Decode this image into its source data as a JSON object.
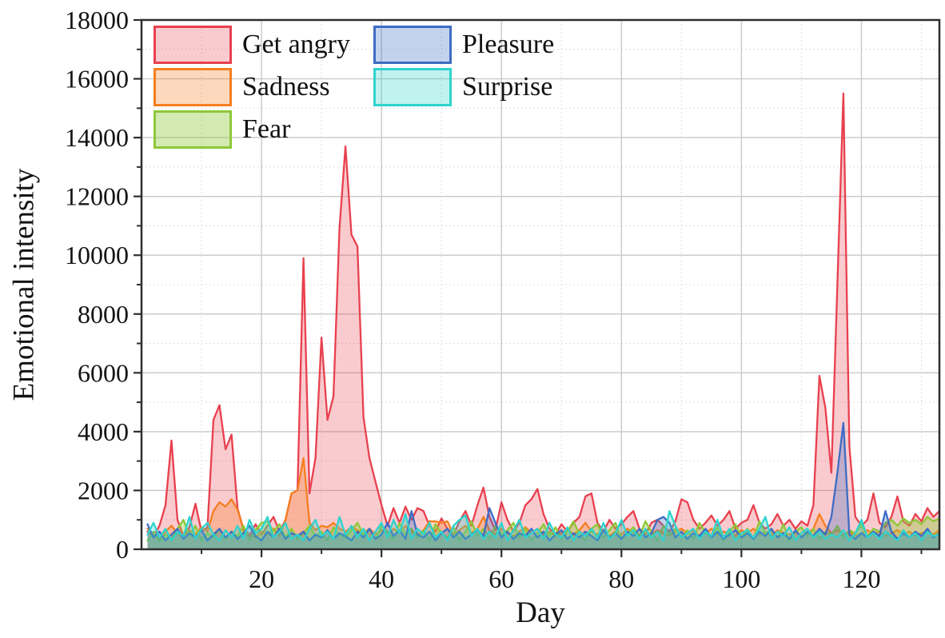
{
  "figure": {
    "xlabel": "Day",
    "ylabel": "Emotional intensity"
  },
  "chart_data": {
    "type": "area",
    "title": "",
    "xlabel": "Day",
    "ylabel": "Emotional intensity",
    "legend_position": "top-left-inside",
    "grid": "major-solid, minor-dotted",
    "frame_color": "#2e2e2e",
    "major_grid_color": "#c8c8c8",
    "minor_grid_color": "#dedede",
    "x_range": [
      0,
      133
    ],
    "y_range": [
      0,
      18000
    ],
    "x_major_ticks": [
      20,
      40,
      60,
      80,
      100,
      120
    ],
    "x_minor_ticks": [
      10,
      30,
      50,
      70,
      90,
      110,
      130
    ],
    "y_major_ticks": [
      0,
      2000,
      4000,
      6000,
      8000,
      10000,
      12000,
      14000,
      16000,
      18000
    ],
    "y_minor_step": 1000,
    "x": [
      1,
      2,
      3,
      4,
      5,
      6,
      7,
      8,
      9,
      10,
      11,
      12,
      13,
      14,
      15,
      16,
      17,
      18,
      19,
      20,
      21,
      22,
      23,
      24,
      25,
      26,
      27,
      28,
      29,
      30,
      31,
      32,
      33,
      34,
      35,
      36,
      37,
      38,
      39,
      40,
      41,
      42,
      43,
      44,
      45,
      46,
      47,
      48,
      49,
      50,
      51,
      52,
      53,
      54,
      55,
      56,
      57,
      58,
      59,
      60,
      61,
      62,
      63,
      64,
      65,
      66,
      67,
      68,
      69,
      70,
      71,
      72,
      73,
      74,
      75,
      76,
      77,
      78,
      79,
      80,
      81,
      82,
      83,
      84,
      85,
      86,
      87,
      88,
      89,
      90,
      91,
      92,
      93,
      94,
      95,
      96,
      97,
      98,
      99,
      100,
      101,
      102,
      103,
      104,
      105,
      106,
      107,
      108,
      109,
      110,
      111,
      112,
      113,
      114,
      115,
      116,
      117,
      118,
      119,
      120,
      121,
      122,
      123,
      124,
      125,
      126,
      127,
      128,
      129,
      130,
      131,
      132,
      133
    ],
    "series": [
      {
        "name": "Get angry",
        "line_color": "#e8404e",
        "fill_color": "rgba(232,64,78,0.27)",
        "values": [
          600,
          450,
          800,
          1500,
          3700,
          1000,
          450,
          750,
          1550,
          600,
          750,
          4400,
          4900,
          3400,
          3900,
          1400,
          650,
          450,
          850,
          500,
          800,
          1100,
          600,
          1000,
          1900,
          2000,
          9900,
          1900,
          3100,
          7200,
          4400,
          5200,
          10900,
          13700,
          10700,
          10300,
          4500,
          3100,
          2300,
          1500,
          800,
          1400,
          900,
          1450,
          1000,
          1400,
          1300,
          800,
          600,
          1050,
          700,
          500,
          950,
          1300,
          800,
          1500,
          2100,
          1100,
          650,
          1600,
          1000,
          600,
          900,
          1500,
          1700,
          2050,
          1200,
          700,
          500,
          850,
          600,
          900,
          1100,
          1800,
          1900,
          900,
          600,
          1000,
          700,
          850,
          1100,
          1300,
          700,
          500,
          900,
          1000,
          800,
          600,
          950,
          1700,
          1600,
          1000,
          700,
          900,
          1150,
          800,
          1000,
          1300,
          700,
          900,
          1000,
          1500,
          900,
          700,
          850,
          1200,
          800,
          1000,
          700,
          950,
          800,
          1500,
          5900,
          4800,
          2600,
          9000,
          15500,
          3500,
          1100,
          800,
          1000,
          1900,
          900,
          750,
          1100,
          1800,
          950,
          800,
          1200,
          950,
          1400,
          1100,
          1300
        ]
      },
      {
        "name": "Sadness",
        "line_color": "#f57e20",
        "fill_color": "rgba(245,126,32,0.30)",
        "values": [
          700,
          500,
          350,
          600,
          800,
          550,
          400,
          650,
          500,
          750,
          600,
          1300,
          1600,
          1450,
          1700,
          1350,
          700,
          500,
          400,
          600,
          500,
          700,
          450,
          1000,
          1900,
          2000,
          3100,
          900,
          650,
          800,
          750,
          900,
          700,
          600,
          750,
          650,
          550,
          700,
          500,
          650,
          500,
          700,
          550,
          800,
          600,
          500,
          650,
          950,
          950,
          900,
          950,
          500,
          650,
          800,
          550,
          700,
          1100,
          650,
          500,
          700,
          550,
          450,
          600,
          750,
          550,
          700,
          500,
          600,
          450,
          550,
          700,
          500,
          650,
          900,
          600,
          500,
          650,
          450,
          600,
          500,
          700,
          550,
          450,
          600,
          500,
          650,
          550,
          450,
          600,
          700,
          550,
          650,
          450,
          550,
          700,
          500,
          600,
          550,
          450,
          650,
          550,
          700,
          500,
          600,
          450,
          650,
          550,
          500,
          600,
          450,
          550,
          700,
          1200,
          800,
          550,
          650,
          500,
          600,
          450,
          550,
          650,
          500,
          600,
          450,
          550,
          650,
          500,
          600,
          450,
          550,
          600,
          500,
          650
        ]
      },
      {
        "name": "Fear",
        "line_color": "#8dc838",
        "fill_color": "rgba(141,200,56,0.38)",
        "values": [
          300,
          600,
          250,
          500,
          350,
          700,
          1000,
          450,
          800,
          300,
          550,
          400,
          700,
          350,
          600,
          450,
          800,
          300,
          650,
          900,
          950,
          600,
          850,
          400,
          700,
          350,
          550,
          800,
          450,
          600,
          300,
          750,
          500,
          400,
          650,
          900,
          500,
          700,
          350,
          800,
          600,
          350,
          900,
          500,
          700,
          400,
          650,
          300,
          850,
          550,
          400,
          750,
          300,
          600,
          950,
          450,
          700,
          350,
          800,
          500,
          650,
          900,
          400,
          700,
          300,
          550,
          850,
          450,
          750,
          350,
          600,
          950,
          500,
          300,
          700,
          850,
          400,
          650,
          900,
          350,
          550,
          750,
          450,
          950,
          600,
          300,
          800,
          500,
          700,
          400,
          650,
          350,
          900,
          550,
          450,
          750,
          300,
          600,
          850,
          400,
          700,
          350,
          950,
          550,
          650,
          400,
          850,
          300,
          600,
          750,
          450,
          700,
          350,
          600,
          500,
          800,
          400,
          650,
          550,
          850,
          450,
          700,
          600,
          900,
          1000,
          800,
          1050,
          900,
          1000,
          850,
          1100,
          950,
          1050
        ]
      },
      {
        "name": "Pleasure",
        "line_color": "#3d6cc4",
        "fill_color": "rgba(61,108,196,0.30)",
        "values": [
          850,
          400,
          600,
          300,
          500,
          700,
          350,
          550,
          400,
          650,
          300,
          500,
          700,
          400,
          600,
          350,
          550,
          800,
          450,
          300,
          600,
          400,
          700,
          350,
          550,
          450,
          600,
          300,
          500,
          400,
          650,
          350,
          550,
          450,
          300,
          600,
          400,
          700,
          350,
          500,
          900,
          450,
          650,
          350,
          1300,
          500,
          400,
          600,
          300,
          550,
          700,
          400,
          600,
          350,
          500,
          650,
          450,
          1400,
          900,
          400,
          600,
          350,
          550,
          450,
          700,
          400,
          600,
          300,
          500,
          650,
          350,
          550,
          400,
          600,
          450,
          300,
          650,
          400,
          550,
          350,
          600,
          450,
          700,
          400,
          550,
          1000,
          1100,
          900,
          400,
          600,
          350,
          550,
          450,
          700,
          400,
          600,
          350,
          500,
          650,
          400,
          550,
          350,
          600,
          450,
          700,
          400,
          550,
          350,
          650,
          400,
          600,
          450,
          700,
          500,
          1100,
          2600,
          4300,
          500,
          350,
          550,
          400,
          600,
          450,
          1300,
          600,
          350,
          550,
          400,
          600,
          450,
          700,
          400,
          550
        ]
      },
      {
        "name": "Surprise",
        "line_color": "#2ed3cd",
        "fill_color": "rgba(46,211,205,0.30)",
        "values": [
          500,
          900,
          400,
          700,
          300,
          600,
          450,
          1100,
          350,
          700,
          900,
          500,
          300,
          650,
          400,
          800,
          350,
          1000,
          550,
          700,
          1100,
          400,
          600,
          900,
          350,
          500,
          300,
          700,
          1000,
          450,
          600,
          350,
          1100,
          500,
          800,
          400,
          700,
          300,
          600,
          900,
          400,
          1000,
          550,
          1200,
          350,
          700,
          500,
          900,
          400,
          600,
          300,
          800,
          1000,
          1150,
          450,
          700,
          350,
          600,
          400,
          900,
          300,
          650,
          1000,
          400,
          550,
          700,
          350,
          900,
          500,
          400,
          750,
          300,
          600,
          450,
          700,
          400,
          900,
          350,
          550,
          1000,
          450,
          650,
          350,
          700,
          400,
          600,
          300,
          1300,
          800,
          400,
          550,
          700,
          350,
          600,
          450,
          1000,
          400,
          700,
          300,
          550,
          650,
          400,
          700,
          1100,
          350,
          600,
          450,
          750,
          300,
          550,
          700,
          400,
          600,
          350,
          500,
          400,
          650,
          300,
          550,
          1000,
          400,
          550,
          350,
          600,
          450,
          300,
          650,
          400,
          550,
          300,
          600,
          450,
          500
        ]
      }
    ]
  }
}
